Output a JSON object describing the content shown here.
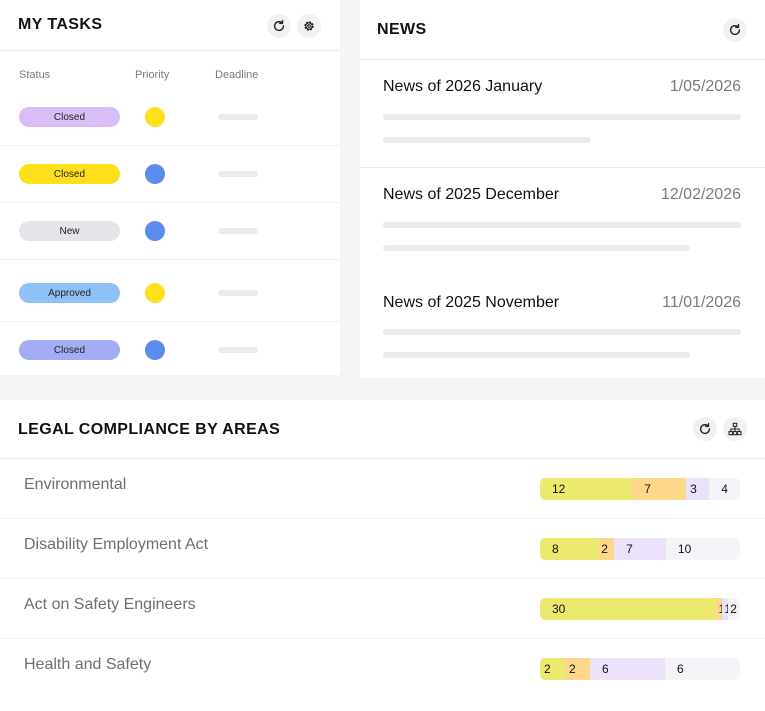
{
  "tasks": {
    "title": "MY TASKS",
    "columns": {
      "status": "Status",
      "priority": "Priority",
      "deadline": "Deadline"
    },
    "rows": [
      {
        "status": "Closed",
        "status_color": "#d9bdf7",
        "priority_color": "#ffe01a"
      },
      {
        "status": "Closed",
        "status_color": "#ffe01a",
        "priority_color": "#5b8def"
      },
      {
        "status": "New",
        "status_color": "#e5e4e8",
        "priority_color": "#5b8def"
      },
      {
        "status": "Approved",
        "status_color": "#8ec1f7",
        "priority_color": "#ffe01a"
      },
      {
        "status": "Closed",
        "status_color": "#a3adf5",
        "priority_color": "#5b8def"
      }
    ]
  },
  "news": {
    "title": "NEWS",
    "items": [
      {
        "title": "News of 2026 January",
        "date": "1/05/2026"
      },
      {
        "title": "News of 2025 December",
        "date": "12/02/2026"
      },
      {
        "title": "News of 2025 November",
        "date": "11/01/2026"
      }
    ]
  },
  "compliance": {
    "title": "LEGAL COMPLIANCE BY AREAS",
    "segment_colors": [
      "#ebe96e",
      "#fdd78c",
      "#ebe1fb",
      "#f4f3f7"
    ],
    "rows": [
      {
        "area": "Environmental",
        "values": [
          12,
          7,
          3,
          4
        ]
      },
      {
        "area": "Disability Employment Act",
        "values": [
          8,
          2,
          7,
          10
        ]
      },
      {
        "area": "Act on Safety Engineers",
        "values": [
          30,
          1,
          1,
          2
        ]
      },
      {
        "area": "Health and Safety",
        "values": [
          2,
          2,
          6,
          6
        ]
      }
    ]
  },
  "icons": {
    "refresh": "refresh-icon",
    "settings": "gear-icon",
    "hierarchy": "hierarchy-icon"
  }
}
